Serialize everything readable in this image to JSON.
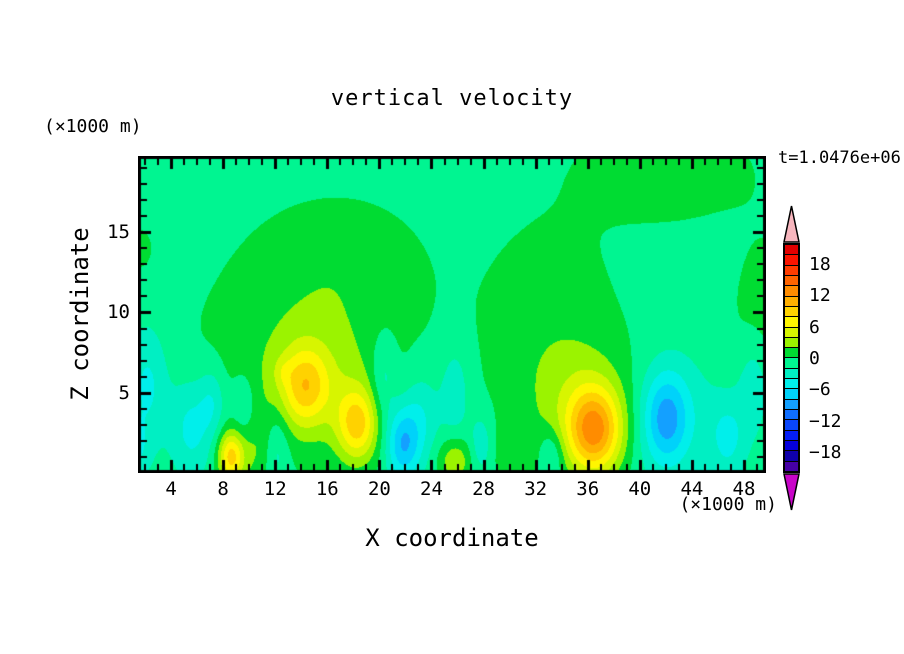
{
  "title": "vertical velocity",
  "time_label": "t=1.0476e+06",
  "axes": {
    "x_label": "X coordinate",
    "x_unit": "(×1000 m)",
    "y_label": "Z coordinate",
    "y_unit": "(×1000 m)",
    "x_range": [
      1.46,
      49.69
    ],
    "y_range": [
      0,
      19.75
    ],
    "x_major_ticks": [
      4,
      8,
      12,
      16,
      20,
      24,
      28,
      32,
      36,
      40,
      44,
      48
    ],
    "y_major_ticks": [
      5,
      10,
      15
    ],
    "minor_tick_step": 1
  },
  "chart_data": {
    "type": "heatmap",
    "subtype": "filled-contour",
    "title": "vertical velocity",
    "xlabel": "X coordinate (×1000 m)",
    "ylabel": "Z coordinate (×1000 m)",
    "xlim": [
      1.46,
      49.69
    ],
    "ylim": [
      0,
      19.75
    ],
    "contour_interval": 2,
    "level_max": 22,
    "level_min": -22,
    "colorbar": {
      "labels": [
        {
          "value": 18,
          "label": "18"
        },
        {
          "value": 12,
          "label": "12"
        },
        {
          "value": 6,
          "label": "6"
        },
        {
          "value": 0,
          "label": "0"
        },
        {
          "value": -6,
          "label": "−6"
        },
        {
          "value": -12,
          "label": "−12"
        },
        {
          "value": -18,
          "label": "−18"
        }
      ],
      "band_colors_top_to_bottom": [
        "#E10000",
        "#FA1400",
        "#FF3C00",
        "#FF6400",
        "#FF8C00",
        "#FFAF00",
        "#FFD200",
        "#FFF500",
        "#D7F500",
        "#9BF300",
        "#00DC32",
        "#00F591",
        "#00EFC3",
        "#00EFEB",
        "#00D2FA",
        "#14A0FF",
        "#0F6EFF",
        "#0A46FA",
        "#051EF5",
        "#0500DC",
        "#0F00AA",
        "#4600A5"
      ],
      "over_arrow_color": "#F7B6BE",
      "under_arrow_color": "#C805C8"
    },
    "field": {
      "background_value": -0.8,
      "gaussian_features": [
        {
          "x": 14.0,
          "z": 7.0,
          "sx": 6.0,
          "sz": 4.5,
          "amp": 2.1
        },
        {
          "x": 17.0,
          "z": 13.0,
          "sx": 4.5,
          "sz": 3.0,
          "amp": 1.7
        },
        {
          "x": 33.0,
          "z": 9.5,
          "sx": 3.8,
          "sz": 4.6,
          "amp": 1.8
        },
        {
          "x": 42.0,
          "z": 18.8,
          "sx": 5.0,
          "sz": 2.4,
          "amp": 1.8
        },
        {
          "x": 36.5,
          "z": 2.6,
          "sx": 1.5,
          "sz": 1.9,
          "amp": 12.0
        },
        {
          "x": 35.5,
          "z": 4.5,
          "sx": 3.2,
          "sz": 2.8,
          "amp": 3.0
        },
        {
          "x": 14.3,
          "z": 5.4,
          "sx": 1.25,
          "sz": 1.7,
          "amp": 6.5
        },
        {
          "x": 15.0,
          "z": 5.5,
          "sx": 2.8,
          "sz": 2.5,
          "amp": 2.5
        },
        {
          "x": 12.6,
          "z": 6.3,
          "sx": 0.5,
          "sz": 0.6,
          "amp": 1.5
        },
        {
          "x": 18.3,
          "z": 3.0,
          "sx": 1.1,
          "sz": 1.6,
          "amp": 8.5
        },
        {
          "x": 8.6,
          "z": 1.0,
          "sx": 0.7,
          "sz": 1.1,
          "amp": 8.8
        },
        {
          "x": 10.5,
          "z": 1.5,
          "sx": 1.2,
          "sz": 1.8,
          "amp": 2.2
        },
        {
          "x": 25.8,
          "z": 0.8,
          "sx": 0.9,
          "sz": 1.0,
          "amp": 4.5
        },
        {
          "x": 49.5,
          "z": 9.0,
          "sx": 1.8,
          "sz": 4.0,
          "amp": 1.8
        },
        {
          "x": 30.5,
          "z": 1.0,
          "sx": 1.2,
          "sz": 1.5,
          "amp": 2.0
        },
        {
          "x": 1.5,
          "z": 14.0,
          "sx": 0.8,
          "sz": 1.0,
          "amp": 1.5
        },
        {
          "x": 2.2,
          "z": 5.5,
          "sx": 1.1,
          "sz": 2.6,
          "amp": -3.8
        },
        {
          "x": 1.2,
          "z": 1.5,
          "sx": 0.8,
          "sz": 1.3,
          "amp": -3.2
        },
        {
          "x": 5.6,
          "z": 2.8,
          "sx": 1.2,
          "sz": 2.2,
          "amp": -4.2
        },
        {
          "x": 7.2,
          "z": 4.5,
          "sx": 0.7,
          "sz": 1.5,
          "amp": -3.0
        },
        {
          "x": 12.1,
          "z": 1.6,
          "sx": 0.7,
          "sz": 1.8,
          "amp": -3.4
        },
        {
          "x": 9.6,
          "z": 4.0,
          "sx": 0.7,
          "sz": 1.6,
          "amp": -2.8
        },
        {
          "x": 21.8,
          "z": 1.8,
          "sx": 0.9,
          "sz": 1.6,
          "amp": -7.2
        },
        {
          "x": 23.2,
          "z": 3.5,
          "sx": 1.0,
          "sz": 2.0,
          "amp": -3.2
        },
        {
          "x": 20.3,
          "z": 6.0,
          "sx": 0.7,
          "sz": 2.0,
          "amp": -3.0
        },
        {
          "x": 25.8,
          "z": 5.0,
          "sx": 0.8,
          "sz": 2.2,
          "amp": -2.8
        },
        {
          "x": 27.8,
          "z": 1.8,
          "sx": 0.6,
          "sz": 1.3,
          "amp": -3.0
        },
        {
          "x": 33.2,
          "z": 1.2,
          "sx": 0.7,
          "sz": 1.1,
          "amp": -3.2
        },
        {
          "x": 42.0,
          "z": 3.4,
          "sx": 1.2,
          "sz": 2.0,
          "amp": -6.5
        },
        {
          "x": 42.5,
          "z": 3.5,
          "sx": 2.6,
          "sz": 2.8,
          "amp": -2.5
        },
        {
          "x": 46.8,
          "z": 2.2,
          "sx": 1.0,
          "sz": 1.8,
          "amp": -3.5
        },
        {
          "x": 48.8,
          "z": 5.5,
          "sx": 0.9,
          "sz": 2.2,
          "amp": -3.3
        }
      ]
    }
  }
}
